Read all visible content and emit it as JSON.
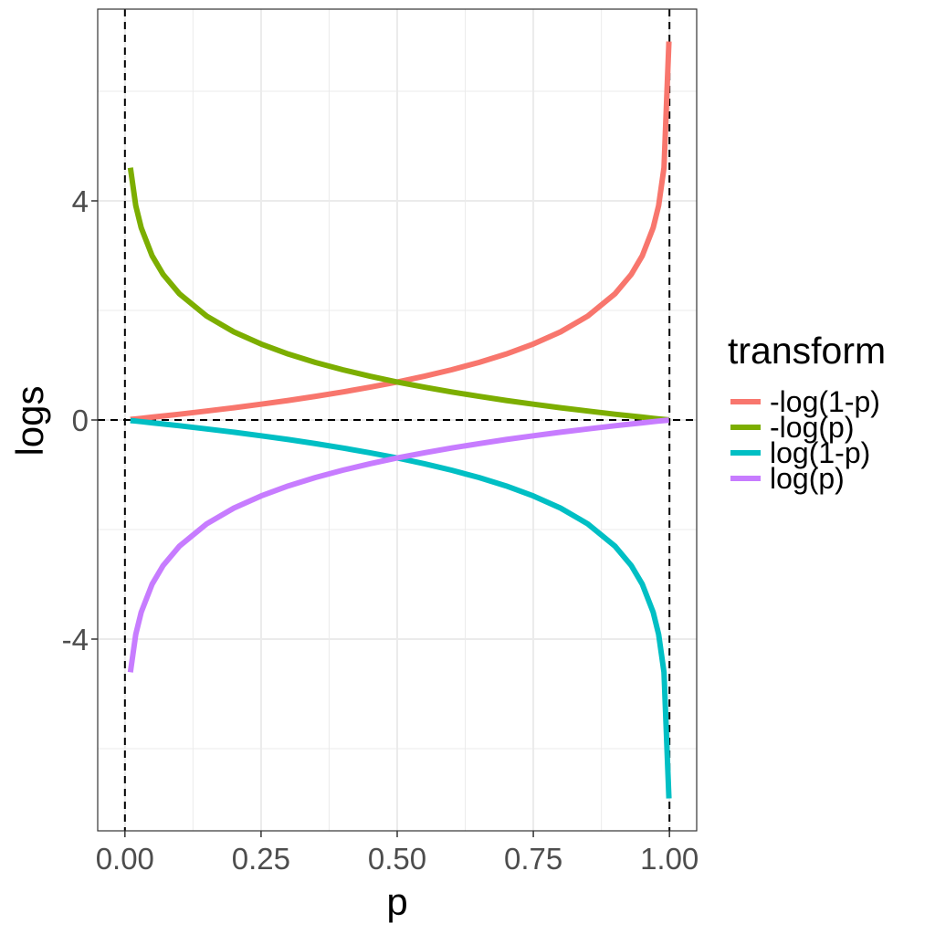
{
  "chart_data": {
    "type": "line",
    "xlabel": "p",
    "ylabel": "logs",
    "xlim": [
      -0.05,
      1.05
    ],
    "ylim": [
      -7.5,
      7.5
    ],
    "x_ticks": [
      0.0,
      0.25,
      0.5,
      0.75,
      1.0
    ],
    "x_tick_labels": [
      "0.00",
      "0.25",
      "0.50",
      "0.75",
      "1.00"
    ],
    "y_ticks": [
      -4,
      0,
      4
    ],
    "y_tick_labels": [
      "-4",
      "0",
      "4"
    ],
    "grid": true,
    "reference_lines": {
      "vertical": [
        0,
        1
      ],
      "horizontal": [
        0
      ],
      "style": "dashed"
    },
    "x": [
      0.01,
      0.02,
      0.03,
      0.05,
      0.07,
      0.1,
      0.15,
      0.2,
      0.25,
      0.3,
      0.35,
      0.4,
      0.45,
      0.5,
      0.55,
      0.6,
      0.65,
      0.7,
      0.75,
      0.8,
      0.85,
      0.9,
      0.93,
      0.95,
      0.97,
      0.98,
      0.99,
      0.999
    ],
    "series": [
      {
        "name": "-log(1-p)",
        "color": "#F8766D",
        "values": [
          0.01,
          0.02,
          0.03,
          0.051,
          0.073,
          0.105,
          0.163,
          0.223,
          0.288,
          0.357,
          0.431,
          0.511,
          0.598,
          0.693,
          0.799,
          0.916,
          1.05,
          1.204,
          1.386,
          1.609,
          1.897,
          2.303,
          2.659,
          2.996,
          3.507,
          3.912,
          4.605,
          6.908
        ]
      },
      {
        "name": "-log(p)",
        "color": "#7CAE00",
        "values": [
          4.605,
          3.912,
          3.507,
          2.996,
          2.659,
          2.303,
          1.897,
          1.609,
          1.386,
          1.204,
          1.05,
          0.916,
          0.799,
          0.693,
          0.598,
          0.511,
          0.431,
          0.357,
          0.288,
          0.223,
          0.163,
          0.105,
          0.073,
          0.051,
          0.03,
          0.02,
          0.01,
          0.001
        ]
      },
      {
        "name": "log(1-p)",
        "color": "#00BFC4",
        "values": [
          -0.01,
          -0.02,
          -0.03,
          -0.051,
          -0.073,
          -0.105,
          -0.163,
          -0.223,
          -0.288,
          -0.357,
          -0.431,
          -0.511,
          -0.598,
          -0.693,
          -0.799,
          -0.916,
          -1.05,
          -1.204,
          -1.386,
          -1.609,
          -1.897,
          -2.303,
          -2.659,
          -2.996,
          -3.507,
          -3.912,
          -4.605,
          -6.908
        ]
      },
      {
        "name": "log(p)",
        "color": "#C77CFF",
        "values": [
          -4.605,
          -3.912,
          -3.507,
          -2.996,
          -2.659,
          -2.303,
          -1.897,
          -1.609,
          -1.386,
          -1.204,
          -1.05,
          -0.916,
          -0.799,
          -0.693,
          -0.598,
          -0.511,
          -0.431,
          -0.357,
          -0.288,
          -0.223,
          -0.163,
          -0.105,
          -0.073,
          -0.051,
          -0.03,
          -0.02,
          -0.01,
          -0.001
        ]
      }
    ],
    "legend": {
      "title": "transform",
      "position": "right"
    }
  }
}
